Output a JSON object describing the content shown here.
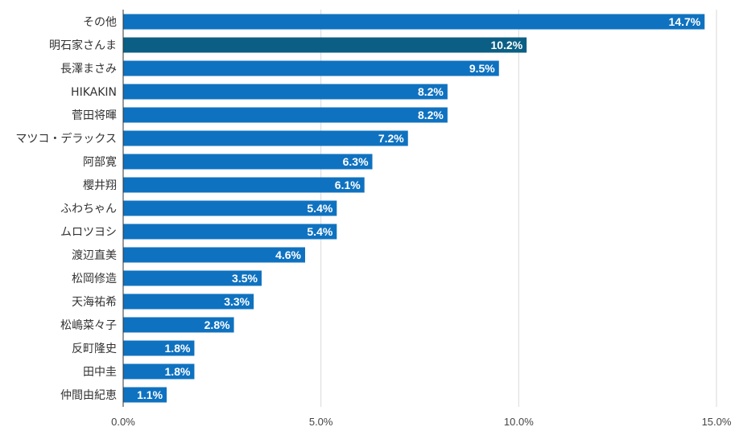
{
  "chart_data": {
    "type": "bar",
    "orientation": "horizontal",
    "categories": [
      "その他",
      "明石家さんま",
      "長澤まさみ",
      "HIKAKIN",
      "菅田将暉",
      "マツコ・デラックス",
      "阿部寛",
      "櫻井翔",
      "ふわちゃん",
      "ムロツヨシ",
      "渡辺直美",
      "松岡修造",
      "天海祐希",
      "松嶋菜々子",
      "反町隆史",
      "田中圭",
      "仲間由紀恵"
    ],
    "values": [
      14.7,
      10.2,
      9.5,
      8.2,
      8.2,
      7.2,
      6.3,
      6.1,
      5.4,
      5.4,
      4.6,
      3.5,
      3.3,
      2.8,
      1.8,
      1.8,
      1.1
    ],
    "data_labels": [
      "14.7%",
      "10.2%",
      "9.5%",
      "8.2%",
      "8.2%",
      "7.2%",
      "6.3%",
      "6.1%",
      "5.4%",
      "5.4%",
      "4.6%",
      "3.5%",
      "3.3%",
      "2.8%",
      "1.8%",
      "1.8%",
      "1.1%"
    ],
    "xlim": [
      0,
      15
    ],
    "x_ticks": [
      0,
      5,
      10,
      15
    ],
    "x_tick_labels": [
      "0.0%",
      "5.0%",
      "10.0%",
      "15.0%"
    ],
    "grid": true,
    "bar_color": "#0f72c0",
    "highlight_color": "#0b5f85",
    "highlight_index": 1
  }
}
